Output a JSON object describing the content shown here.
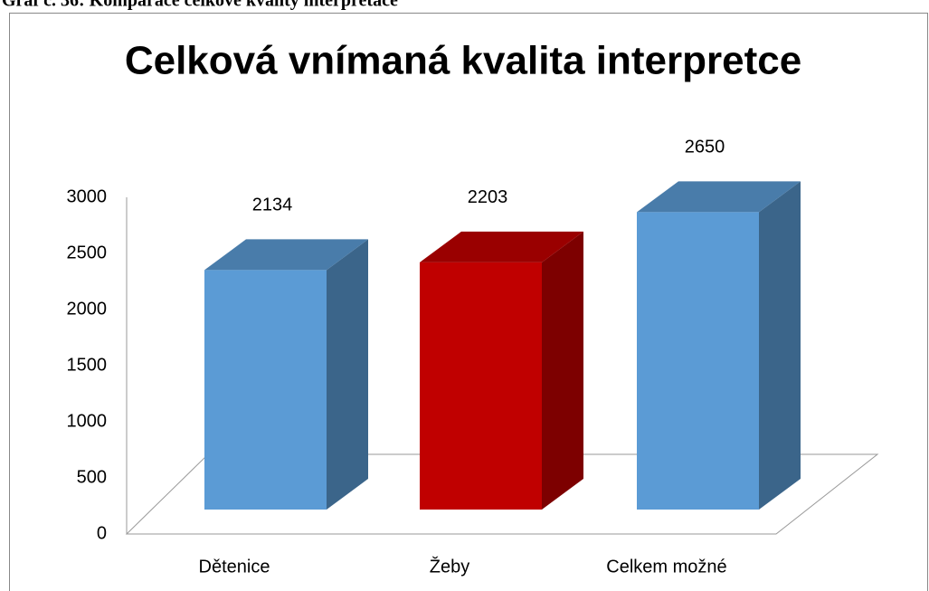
{
  "caption": "Graf č. 36: Komparace celkové kvality interpretace",
  "chart_data": {
    "type": "bar3d",
    "title": "Celková vnímaná kvalita interpretce",
    "categories": [
      "Dětenice",
      "Žeby",
      "Celkem možné"
    ],
    "values": [
      2134,
      2203,
      2650
    ],
    "colors": [
      "#5b9bd5",
      "#c00000",
      "#5b9bd5"
    ],
    "ylim": [
      0,
      3000
    ],
    "yticks": [
      0,
      500,
      1000,
      1500,
      2000,
      2500,
      3000
    ],
    "grid": false
  }
}
